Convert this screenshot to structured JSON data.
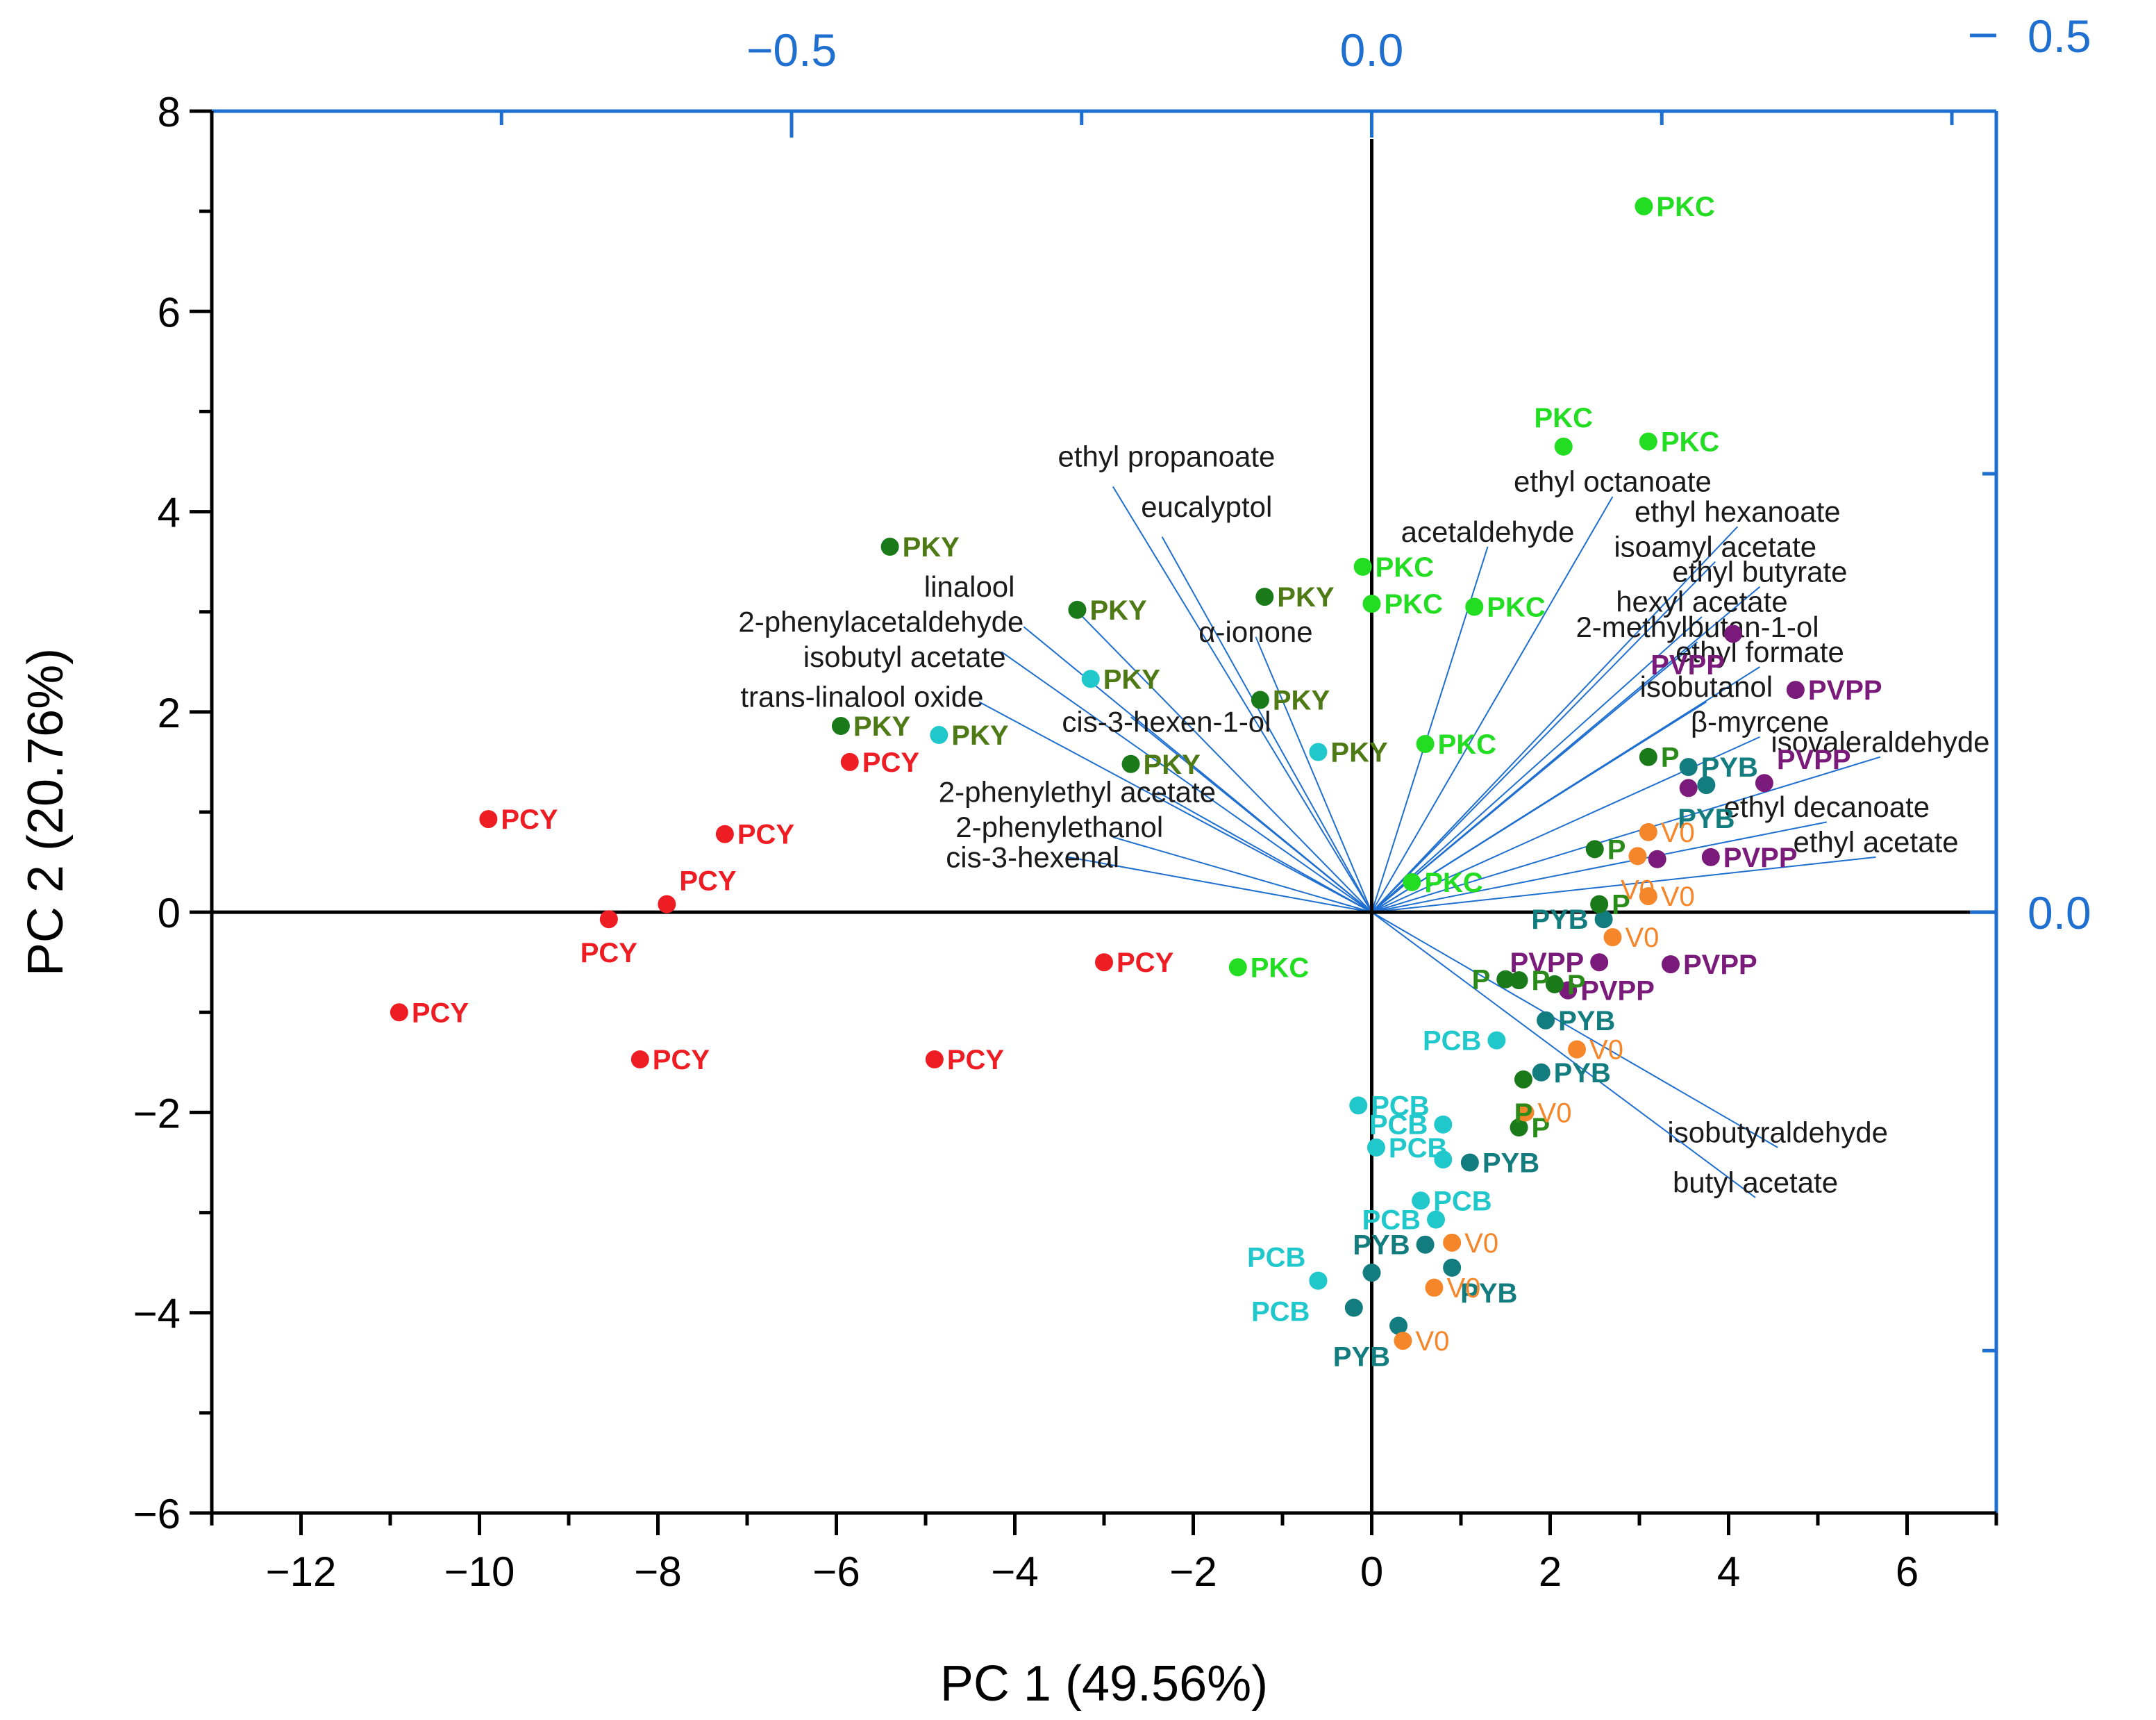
{
  "chart_data": {
    "type": "scatter",
    "subtype": "biplot",
    "xlabel": "PC 1 (49.56%)",
    "ylabel": "PC 2 (20.76%)",
    "xlim": [
      -13,
      7
    ],
    "ylim": [
      -6,
      8
    ],
    "xticks": [
      "−12",
      "−10",
      "−8",
      "−6",
      "−4",
      "−2",
      "0",
      "2",
      "4",
      "6"
    ],
    "xtick_values": [
      -12,
      -10,
      -8,
      -6,
      -4,
      -2,
      0,
      2,
      4,
      6
    ],
    "yticks": [
      "−6",
      "−4",
      "−2",
      "0",
      "2",
      "4",
      "6",
      "8"
    ],
    "ytick_values": [
      -6,
      -4,
      -2,
      0,
      2,
      4,
      6,
      8
    ],
    "top_axis": {
      "ticks": [
        "−0.5",
        "0.0"
      ],
      "tick_values": [
        -0.5,
        0.0
      ],
      "scale": 0.0769
    },
    "right_axis": {
      "ticks": [
        "0.5",
        "0.0"
      ],
      "tick_values": [
        0.5,
        0.0
      ],
      "scale": 0.0571
    },
    "colors": {
      "PCY": "#ee1d23",
      "PKY": "#1a7a1a",
      "PKC": "#22dd22",
      "PCB": "#20c8cc",
      "PYB": "#127c7f",
      "V0": "#f5862a",
      "P": "#1a7a1a",
      "PVPP": "#7a1a7a",
      "loading": "#1e6fd0",
      "axis_secondary": "#1e6fd0"
    },
    "label_colors": {
      "PCY": "#ee1d23",
      "PKY": "#4e7a16",
      "PKC": "#22dd22",
      "PCB": "#20c8cc",
      "PYB": "#127c7f",
      "V0": "#f5862a",
      "P": "#2a8a1a",
      "PVPP": "#7a1a7a"
    },
    "scores": [
      {
        "group": "PKC",
        "x": 3.05,
        "y": 7.05,
        "label": "PKC",
        "lpos": "r"
      },
      {
        "group": "PKC",
        "x": 2.15,
        "y": 4.65,
        "label": "PKC",
        "lpos": "a"
      },
      {
        "group": "PKC",
        "x": 3.1,
        "y": 4.7,
        "label": "PKC",
        "lpos": "r"
      },
      {
        "group": "PKC",
        "x": -0.1,
        "y": 3.45,
        "label": "PKC",
        "lpos": "r"
      },
      {
        "group": "PKC",
        "x": 0.0,
        "y": 3.08,
        "label": "PKC",
        "lpos": "r"
      },
      {
        "group": "PKC",
        "x": 1.15,
        "y": 3.05,
        "label": "PKC",
        "lpos": "r"
      },
      {
        "group": "PKC",
        "x": 0.6,
        "y": 1.68,
        "label": "PKC",
        "lpos": "r"
      },
      {
        "group": "PKC",
        "x": 0.45,
        "y": 0.3,
        "label": "PKC",
        "lpos": "r"
      },
      {
        "group": "PKC",
        "x": -1.5,
        "y": -0.55,
        "label": "PKC",
        "lpos": "r"
      },
      {
        "group": "PKY",
        "x": -5.4,
        "y": 3.65,
        "label": "PKY",
        "lpos": "r"
      },
      {
        "group": "PKY",
        "x": -3.3,
        "y": 3.02,
        "label": "PKY",
        "lpos": "r"
      },
      {
        "group": "PKY",
        "x": -1.2,
        "y": 3.15,
        "label": "PKY",
        "lpos": "r"
      },
      {
        "group": "PKY",
        "x": -1.25,
        "y": 2.12,
        "label": "PKY",
        "lpos": "r"
      },
      {
        "group": "PKY",
        "x": -5.95,
        "y": 1.86,
        "label": "PKY",
        "lpos": "r"
      },
      {
        "group": "PKY",
        "x": -2.7,
        "y": 1.48,
        "label": "PKY",
        "lpos": "r"
      },
      {
        "group": "PCB",
        "x": -3.15,
        "y": 2.33,
        "label": "PKY",
        "lpos": "r",
        "labelGroup": "PKY"
      },
      {
        "group": "PCB",
        "x": -4.85,
        "y": 1.77,
        "label": "PKY",
        "lpos": "r",
        "labelGroup": "PKY"
      },
      {
        "group": "PCB",
        "x": -0.6,
        "y": 1.6,
        "label": "PKY",
        "lpos": "r",
        "labelGroup": "PKY"
      },
      {
        "group": "PCY",
        "x": -5.85,
        "y": 1.5,
        "label": "PCY",
        "lpos": "r"
      },
      {
        "group": "PCY",
        "x": -9.9,
        "y": 0.93,
        "label": "PCY",
        "lpos": "r"
      },
      {
        "group": "PCY",
        "x": -7.25,
        "y": 0.78,
        "label": "PCY",
        "lpos": "r"
      },
      {
        "group": "PCY",
        "x": -7.9,
        "y": 0.08,
        "label": "PCY",
        "lpos": "ar"
      },
      {
        "group": "PCY",
        "x": -8.55,
        "y": -0.07,
        "label": "PCY",
        "lpos": "b"
      },
      {
        "group": "PCY",
        "x": -10.9,
        "y": -1.0,
        "label": "PCY",
        "lpos": "r"
      },
      {
        "group": "PCY",
        "x": -8.2,
        "y": -1.47,
        "label": "PCY",
        "lpos": "r"
      },
      {
        "group": "PCY",
        "x": -4.9,
        "y": -1.47,
        "label": "PCY",
        "lpos": "r"
      },
      {
        "group": "PCY",
        "x": -3.0,
        "y": -0.5,
        "label": "PCY",
        "lpos": "r"
      },
      {
        "group": "PVPP",
        "x": 4.05,
        "y": 2.78,
        "label": "PVPP",
        "lpos": "bl"
      },
      {
        "group": "PVPP",
        "x": 4.75,
        "y": 2.22,
        "label": "PVPP",
        "lpos": "r"
      },
      {
        "group": "PVPP",
        "x": 4.4,
        "y": 1.29,
        "label": "PVPP",
        "lpos": "ar"
      },
      {
        "group": "PVPP",
        "x": 3.55,
        "y": 1.24,
        "label": "PVPP",
        "lpos": "none"
      },
      {
        "group": "PVPP",
        "x": 3.2,
        "y": 0.53,
        "label": "PVPP",
        "lpos": "none"
      },
      {
        "group": "PVPP",
        "x": 3.8,
        "y": 0.55,
        "label": "PVPP",
        "lpos": "r"
      },
      {
        "group": "PVPP",
        "x": 2.55,
        "y": -0.5,
        "label": "PVPP",
        "lpos": "l"
      },
      {
        "group": "PVPP",
        "x": 3.35,
        "y": -0.52,
        "label": "PVPP",
        "lpos": "r"
      },
      {
        "group": "PVPP",
        "x": 2.2,
        "y": -0.78,
        "label": "PVPP",
        "lpos": "r"
      },
      {
        "group": "PYB",
        "x": 3.55,
        "y": 1.45,
        "label": "PYB",
        "lpos": "r"
      },
      {
        "group": "PYB",
        "x": 3.75,
        "y": 1.27,
        "label": "PYB",
        "lpos": "b"
      },
      {
        "group": "PYB",
        "x": 2.6,
        "y": -0.07,
        "label": "PYB",
        "lpos": "l"
      },
      {
        "group": "PYB",
        "x": 1.95,
        "y": -1.08,
        "label": "PYB",
        "lpos": "r"
      },
      {
        "group": "PYB",
        "x": 1.9,
        "y": -1.6,
        "label": "PYB",
        "lpos": "r"
      },
      {
        "group": "PYB",
        "x": 1.1,
        "y": -2.5,
        "label": "PYB",
        "lpos": "r"
      },
      {
        "group": "PYB",
        "x": 0.6,
        "y": -3.32,
        "label": "PYB",
        "lpos": "l"
      },
      {
        "group": "PYB",
        "x": 0.0,
        "y": -3.6,
        "label": "PYB",
        "lpos": "none"
      },
      {
        "group": "PYB",
        "x": -0.2,
        "y": -3.95,
        "label": "PYB",
        "lpos": "none"
      },
      {
        "group": "PYB",
        "x": 0.3,
        "y": -4.13,
        "label": "PYB",
        "lpos": "bl"
      },
      {
        "group": "PYB",
        "x": 0.9,
        "y": -3.55,
        "label": "PYB",
        "lpos": "rb"
      },
      {
        "group": "P",
        "x": 3.1,
        "y": 1.55,
        "label": "P",
        "lpos": "r"
      },
      {
        "group": "P",
        "x": 2.5,
        "y": 0.63,
        "label": "P",
        "lpos": "r"
      },
      {
        "group": "P",
        "x": 2.55,
        "y": 0.08,
        "label": "P",
        "lpos": "r"
      },
      {
        "group": "P",
        "x": 1.5,
        "y": -0.67,
        "label": "P",
        "lpos": "l"
      },
      {
        "group": "P",
        "x": 1.65,
        "y": -0.68,
        "label": "P",
        "lpos": "r"
      },
      {
        "group": "P",
        "x": 2.05,
        "y": -0.72,
        "label": "P",
        "lpos": "r"
      },
      {
        "group": "P",
        "x": 1.7,
        "y": -1.67,
        "label": "P",
        "lpos": "b"
      },
      {
        "group": "P",
        "x": 1.65,
        "y": -2.15,
        "label": "P",
        "lpos": "r"
      },
      {
        "group": "V0",
        "x": 3.1,
        "y": 0.8,
        "label": "V0",
        "lpos": "r"
      },
      {
        "group": "V0",
        "x": 2.98,
        "y": 0.56,
        "label": "V0",
        "lpos": "b"
      },
      {
        "group": "V0",
        "x": 3.1,
        "y": 0.16,
        "label": "V0",
        "lpos": "r"
      },
      {
        "group": "V0",
        "x": 2.7,
        "y": -0.25,
        "label": "V0",
        "lpos": "r"
      },
      {
        "group": "V0",
        "x": 2.3,
        "y": -1.37,
        "label": "V0",
        "lpos": "r"
      },
      {
        "group": "V0",
        "x": 1.72,
        "y": -2.0,
        "label": "V0",
        "lpos": "r"
      },
      {
        "group": "V0",
        "x": 0.9,
        "y": -3.3,
        "label": "V0",
        "lpos": "r"
      },
      {
        "group": "V0",
        "x": 0.7,
        "y": -3.75,
        "label": "V0",
        "lpos": "r"
      },
      {
        "group": "V0",
        "x": 0.35,
        "y": -4.28,
        "label": "V0",
        "lpos": "r"
      },
      {
        "group": "PCB",
        "x": 1.4,
        "y": -1.28,
        "label": "PCB",
        "lpos": "l"
      },
      {
        "group": "PCB",
        "x": -0.15,
        "y": -1.93,
        "label": "PCB",
        "lpos": "r"
      },
      {
        "group": "PCB",
        "x": 0.8,
        "y": -2.12,
        "label": "PCB",
        "lpos": "l"
      },
      {
        "group": "PCB",
        "x": 0.05,
        "y": -2.35,
        "label": "PCB",
        "lpos": "r"
      },
      {
        "group": "PCB",
        "x": 0.8,
        "y": -2.47,
        "label": "PCB",
        "lpos": "none"
      },
      {
        "group": "PCB",
        "x": 0.55,
        "y": -2.88,
        "label": "PCB",
        "lpos": "r"
      },
      {
        "group": "PCB",
        "x": 0.72,
        "y": -3.07,
        "label": "PCB",
        "lpos": "l"
      },
      {
        "group": "PCB",
        "x": -0.6,
        "y": -3.68,
        "label": "PCB",
        "lpos": "al"
      },
      {
        "group": "PCB",
        "x": -0.6,
        "y": -3.68,
        "label": "PCB",
        "lpos": "bl"
      }
    ],
    "loadings": [
      {
        "name": "ethyl propanoate",
        "x": -2.9,
        "y": 4.25,
        "tx": -2.3,
        "ty": 4.45,
        "anchor": "middle"
      },
      {
        "name": "eucalyptol",
        "x": -2.35,
        "y": 3.75,
        "tx": -1.85,
        "ty": 3.95,
        "anchor": "middle"
      },
      {
        "name": "linalool",
        "x": -3.35,
        "y": 3.05,
        "tx": -4.0,
        "ty": 3.15,
        "anchor": "end"
      },
      {
        "name": "2-phenylacetaldehyde",
        "x": -3.9,
        "y": 2.85,
        "tx": -3.9,
        "ty": 2.8,
        "anchor": "end"
      },
      {
        "name": "isobutyl acetate",
        "x": -4.15,
        "y": 2.6,
        "tx": -4.1,
        "ty": 2.45,
        "anchor": "end"
      },
      {
        "name": "trans-linalool oxide",
        "x": -4.4,
        "y": 2.1,
        "tx": -4.35,
        "ty": 2.05,
        "anchor": "end"
      },
      {
        "name": "α-ionone",
        "x": -1.3,
        "y": 2.75,
        "tx": -1.3,
        "ty": 2.7,
        "anchor": "middle"
      },
      {
        "name": "cis-3-hexen-1-ol",
        "x": -2.7,
        "y": 1.95,
        "tx": -2.3,
        "ty": 1.8,
        "anchor": "middle"
      },
      {
        "name": "2-phenylethyl acetate",
        "x": -2.4,
        "y": 1.2,
        "tx": -3.3,
        "ty": 1.1,
        "anchor": "middle"
      },
      {
        "name": "2-phenylethanol",
        "x": -2.9,
        "y": 0.75,
        "tx": -3.5,
        "ty": 0.75,
        "anchor": "middle"
      },
      {
        "name": "cis-3-hexenal",
        "x": -3.4,
        "y": 0.55,
        "tx": -3.8,
        "ty": 0.45,
        "anchor": "middle"
      },
      {
        "name": "acetaldehyde",
        "x": 1.3,
        "y": 3.65,
        "tx": 1.3,
        "ty": 3.7,
        "anchor": "middle"
      },
      {
        "name": "ethyl octanoate",
        "x": 2.7,
        "y": 4.15,
        "tx": 2.7,
        "ty": 4.2,
        "anchor": "middle"
      },
      {
        "name": "ethyl hexanoate",
        "x": 4.1,
        "y": 3.85,
        "tx": 4.1,
        "ty": 3.9,
        "anchor": "middle"
      },
      {
        "name": "isoamyl acetate",
        "x": 3.85,
        "y": 3.5,
        "tx": 3.85,
        "ty": 3.55,
        "anchor": "middle"
      },
      {
        "name": "ethyl butyrate",
        "x": 4.35,
        "y": 3.25,
        "tx": 4.35,
        "ty": 3.3,
        "anchor": "middle"
      },
      {
        "name": "hexyl acetate",
        "x": 3.7,
        "y": 2.95,
        "tx": 3.7,
        "ty": 3.0,
        "anchor": "middle"
      },
      {
        "name": "2-methylbutan-1-ol",
        "x": 3.65,
        "y": 2.7,
        "tx": 3.65,
        "ty": 2.75,
        "anchor": "middle"
      },
      {
        "name": "ethyl formate",
        "x": 4.35,
        "y": 2.45,
        "tx": 4.35,
        "ty": 2.5,
        "anchor": "middle"
      },
      {
        "name": "isobutanol",
        "x": 3.75,
        "y": 2.1,
        "tx": 3.75,
        "ty": 2.15,
        "anchor": "middle"
      },
      {
        "name": "β-myrcene",
        "x": 4.35,
        "y": 1.75,
        "tx": 4.35,
        "ty": 1.8,
        "anchor": "middle"
      },
      {
        "name": "isovaleraldehyde",
        "x": 5.7,
        "y": 1.55,
        "tx": 5.7,
        "ty": 1.6,
        "anchor": "middle"
      },
      {
        "name": "ethyl decanoate",
        "x": 5.1,
        "y": 0.9,
        "tx": 5.1,
        "ty": 0.95,
        "anchor": "middle"
      },
      {
        "name": "ethyl acetate",
        "x": 5.65,
        "y": 0.55,
        "tx": 5.65,
        "ty": 0.6,
        "anchor": "middle"
      },
      {
        "name": "isobutyraldehyde",
        "x": 4.55,
        "y": -2.35,
        "tx": 4.55,
        "ty": -2.3,
        "anchor": "middle"
      },
      {
        "name": "butyl acetate",
        "x": 4.3,
        "y": -2.85,
        "tx": 4.3,
        "ty": -2.8,
        "anchor": "middle"
      }
    ]
  }
}
